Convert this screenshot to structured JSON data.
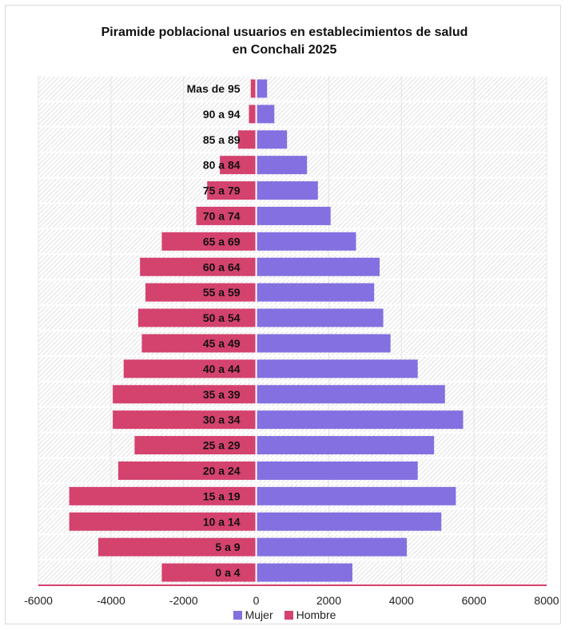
{
  "chart_data": {
    "type": "bar",
    "orientation": "horizontal",
    "title_lines": [
      "Piramide poblacional usuarios en establecimientos de salud",
      "en Conchali 2025"
    ],
    "categories": [
      "Mas de 95",
      "90 a 94",
      "85 a 89",
      "80 a 84",
      "75 a 79",
      "70 a 74",
      "65 a 69",
      "60 a 64",
      "55 a 59",
      "50 a 54",
      "45 a 49",
      "40 a 44",
      "35 a 39",
      "30 a 34",
      "25 a 29",
      "20 a 24",
      "15 a 19",
      "10 a 14",
      "5 a 9",
      "0 a 4"
    ],
    "series": [
      {
        "name": "Mujer",
        "color": "#8470e0",
        "values": [
          300,
          500,
          850,
          1400,
          1700,
          2050,
          2750,
          3400,
          3250,
          3500,
          3700,
          4450,
          5200,
          5700,
          4900,
          4450,
          5500,
          5100,
          4150,
          2650
        ]
      },
      {
        "name": "Hombre",
        "color": "#d4426e",
        "values": [
          -150,
          -200,
          -500,
          -1000,
          -1350,
          -1650,
          -2600,
          -3200,
          -3050,
          -3250,
          -3150,
          -3650,
          -3950,
          -3950,
          -3350,
          -3800,
          -5150,
          -5150,
          -4350,
          -2600
        ]
      }
    ],
    "xlim": [
      -6000,
      8000
    ],
    "xticks": [
      -6000,
      -4000,
      -2000,
      0,
      2000,
      4000,
      6000,
      8000
    ],
    "legend_position": "bottom",
    "grid": true
  }
}
